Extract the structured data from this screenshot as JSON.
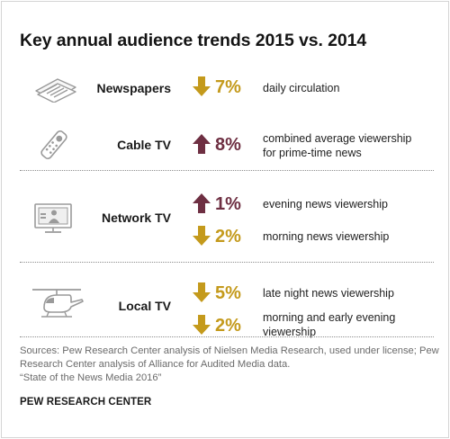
{
  "title": "Key annual audience trends 2015 vs. 2014",
  "colors": {
    "down": "#c49a1c",
    "up": "#6e2f42",
    "icon": "#9a9a9a"
  },
  "chart_data": {
    "type": "table",
    "title": "Key annual audience trends 2015 vs. 2014",
    "rows": [
      {
        "medium": "Newspapers",
        "icon": "newspaper-icon",
        "direction": "down",
        "change_label": "7%",
        "change_value": -7,
        "metric": "daily circulation"
      },
      {
        "medium": "Cable TV",
        "icon": "remote-control-icon",
        "direction": "up",
        "change_label": "8%",
        "change_value": 8,
        "metric": "combined average viewership for prime-time news"
      },
      {
        "medium": "Network TV",
        "icon": "tv-monitor-icon",
        "direction": "up",
        "change_label": "1%",
        "change_value": 1,
        "metric": "evening news viewership"
      },
      {
        "medium": "Network TV",
        "icon": "tv-monitor-icon",
        "direction": "down",
        "change_label": "2%",
        "change_value": -2,
        "metric": "morning news viewership"
      },
      {
        "medium": "Local TV",
        "icon": "news-helicopter-icon",
        "direction": "down",
        "change_label": "5%",
        "change_value": -5,
        "metric": "late night news viewership"
      },
      {
        "medium": "Local TV",
        "icon": "news-helicopter-icon",
        "direction": "down",
        "change_label": "2%",
        "change_value": -2,
        "metric": "morning and early evening viewership"
      }
    ]
  },
  "display": {
    "sections": [
      {
        "medium": "Newspapers",
        "icon": "newspaper-icon"
      },
      {
        "medium": "Cable TV",
        "icon": "remote-control-icon"
      },
      {
        "medium": "Network TV",
        "icon": "tv-monitor-icon"
      },
      {
        "medium": "Local TV",
        "icon": "news-helicopter-icon"
      }
    ],
    "rows": [
      {
        "direction": "down",
        "pct": "7%",
        "metric_lines": [
          "daily circulation"
        ]
      },
      {
        "direction": "up",
        "pct": "8%",
        "metric_lines": [
          "combined average viewership",
          "for prime-time news"
        ]
      },
      {
        "direction": "up",
        "pct": "1%",
        "metric_lines": [
          "evening news viewership"
        ]
      },
      {
        "direction": "down",
        "pct": "2%",
        "metric_lines": [
          "morning news viewership"
        ]
      },
      {
        "direction": "down",
        "pct": "5%",
        "metric_lines": [
          "late night news viewership"
        ]
      },
      {
        "direction": "down",
        "pct": "2%",
        "metric_lines": [
          "morning and early evening",
          "viewership"
        ]
      }
    ]
  },
  "sources": {
    "lines": [
      "Sources: Pew Research Center analysis of Nielsen Media Research, used under license; Pew",
      "Research Center analysis of Alliance for Audited Media data.",
      "“State of the News Media 2016”"
    ]
  },
  "credit": "PEW RESEARCH CENTER"
}
